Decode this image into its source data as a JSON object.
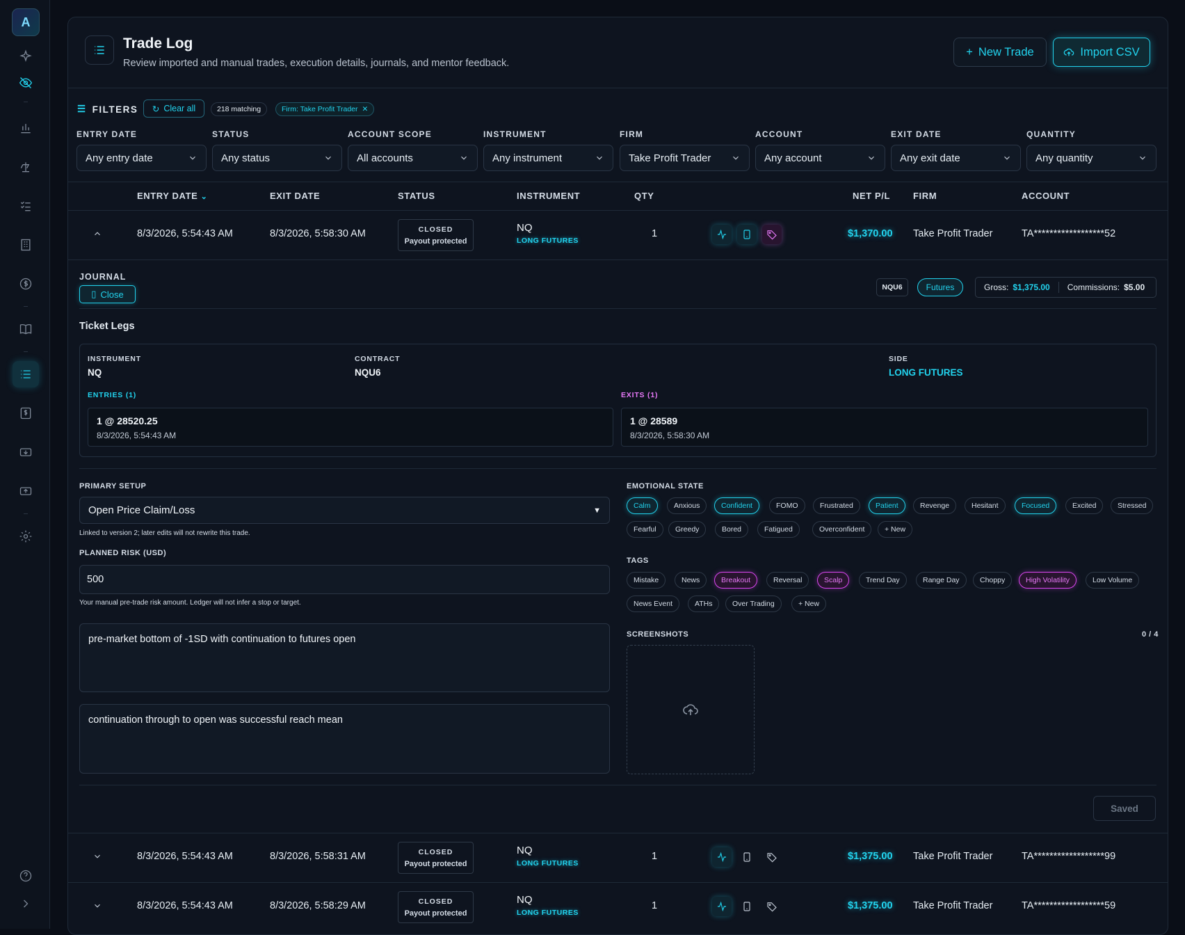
{
  "rail": {
    "logo_text": "A",
    "items": [
      "sparkle",
      "eye-off",
      "chart",
      "scale",
      "checklist",
      "building",
      "dollar",
      "book",
      "list",
      "ledger",
      "payout-in",
      "payout-out",
      "settings"
    ],
    "bottom": [
      "help",
      "expand"
    ]
  },
  "header": {
    "title": "Trade Log",
    "subtitle": "Review imported and manual trades, execution details, journals, and mentor feedback.",
    "new_trade": "New Trade",
    "import_csv": "Import CSV"
  },
  "filters": {
    "label": "FILTERS",
    "clear_all": "Clear all",
    "matching": "218 matching",
    "firm_chip": "Firm: Take Profit Trader",
    "fields": [
      {
        "label": "ENTRY DATE",
        "value": "Any entry date"
      },
      {
        "label": "STATUS",
        "value": "Any status"
      },
      {
        "label": "ACCOUNT SCOPE",
        "value": "All accounts"
      },
      {
        "label": "INSTRUMENT",
        "value": "Any instrument"
      },
      {
        "label": "FIRM",
        "value": "Take Profit Trader"
      },
      {
        "label": "ACCOUNT",
        "value": "Any account"
      },
      {
        "label": "EXIT DATE",
        "value": "Any exit date"
      },
      {
        "label": "QUANTITY",
        "value": "Any quantity"
      }
    ]
  },
  "table": {
    "headers": {
      "entry": "ENTRY DATE",
      "exit": "EXIT DATE",
      "status": "STATUS",
      "instrument": "INSTRUMENT",
      "qty": "QTY",
      "pnl": "NET P/L",
      "firm": "FIRM",
      "account": "ACCOUNT"
    },
    "rows": [
      {
        "entry": "8/3/2026, 5:54:43 AM",
        "exit": "8/3/2026, 5:58:30 AM",
        "status": "CLOSED",
        "status_sub": "Payout protected",
        "instrument": "NQ",
        "type": "LONG FUTURES",
        "qty": "1",
        "pnl": "$1,370.00",
        "firm": "Take Profit Trader",
        "account": "TA******************52"
      },
      {
        "entry": "8/3/2026, 5:54:43 AM",
        "exit": "8/3/2026, 5:58:31 AM",
        "status": "CLOSED",
        "status_sub": "Payout protected",
        "instrument": "NQ",
        "type": "LONG FUTURES",
        "qty": "1",
        "pnl": "$1,375.00",
        "firm": "Take Profit Trader",
        "account": "TA******************99"
      },
      {
        "entry": "8/3/2026, 5:54:43 AM",
        "exit": "8/3/2026, 5:58:29 AM",
        "status": "CLOSED",
        "status_sub": "Payout protected",
        "instrument": "NQ",
        "type": "LONG FUTURES",
        "qty": "1",
        "pnl": "$1,375.00",
        "firm": "Take Profit Trader",
        "account": "TA******************59"
      }
    ]
  },
  "detail": {
    "journal_label": "JOURNAL",
    "close": "Close",
    "contract_badge": "NQU6",
    "type_badge": "Futures",
    "gross_label": "Gross:",
    "gross": "$1,375.00",
    "comm_label": "Commissions:",
    "comm": "$5.00",
    "ticket_legs": "Ticket Legs",
    "legs": {
      "instrument_label": "INSTRUMENT",
      "instrument": "NQ",
      "contract_label": "CONTRACT",
      "contract": "NQU6",
      "side_label": "SIDE",
      "side": "LONG FUTURES",
      "entries_label": "ENTRIES (1)",
      "entry_fill": "1 @ 28520.25",
      "entry_time": "8/3/2026, 5:54:43 AM",
      "exits_label": "EXITS (1)",
      "exit_fill": "1 @ 28589",
      "exit_time": "8/3/2026, 5:58:30 AM"
    },
    "primary_setup_label": "PRIMARY SETUP",
    "primary_setup": "Open Price Claim/Loss",
    "setup_hint": "Linked to version 2; later edits will not rewrite this trade.",
    "risk_label": "PLANNED RISK (USD)",
    "risk": "500",
    "risk_hint": "Your manual pre-trade risk amount. Ledger will not infer a stop or target.",
    "note1": "pre-market bottom of -1SD with continuation to futures open",
    "note2": "continuation through to open was successful reach mean",
    "emotional_label": "EMOTIONAL STATE",
    "emotions": [
      "Calm",
      "Anxious",
      "Confident",
      "FOMO",
      "Frustrated",
      "Patient",
      "Revenge",
      "Hesitant",
      "Focused",
      "Excited",
      "Stressed",
      "Fearful",
      "Greedy",
      "Bored",
      "Fatigued",
      "Overconfident",
      "+ New"
    ],
    "emotions_selected": [
      "Calm",
      "Confident",
      "Patient",
      "Focused"
    ],
    "tags_label": "TAGS",
    "tags": [
      "Mistake",
      "News",
      "Breakout",
      "Reversal",
      "Scalp",
      "Trend Day",
      "Range Day",
      "Choppy",
      "High Volatility",
      "Low Volume",
      "News Event",
      "ATHs",
      "Over Trading",
      "+ New"
    ],
    "tags_selected": [
      "Breakout",
      "Scalp",
      "High Volatility"
    ],
    "screenshots_label": "SCREENSHOTS",
    "screenshots_count": "0 / 4",
    "saved": "Saved"
  },
  "colors": {
    "accent": "#22d3ee",
    "magenta": "#e879f9",
    "bg": "#0a0e17",
    "panel": "#0e141f"
  }
}
